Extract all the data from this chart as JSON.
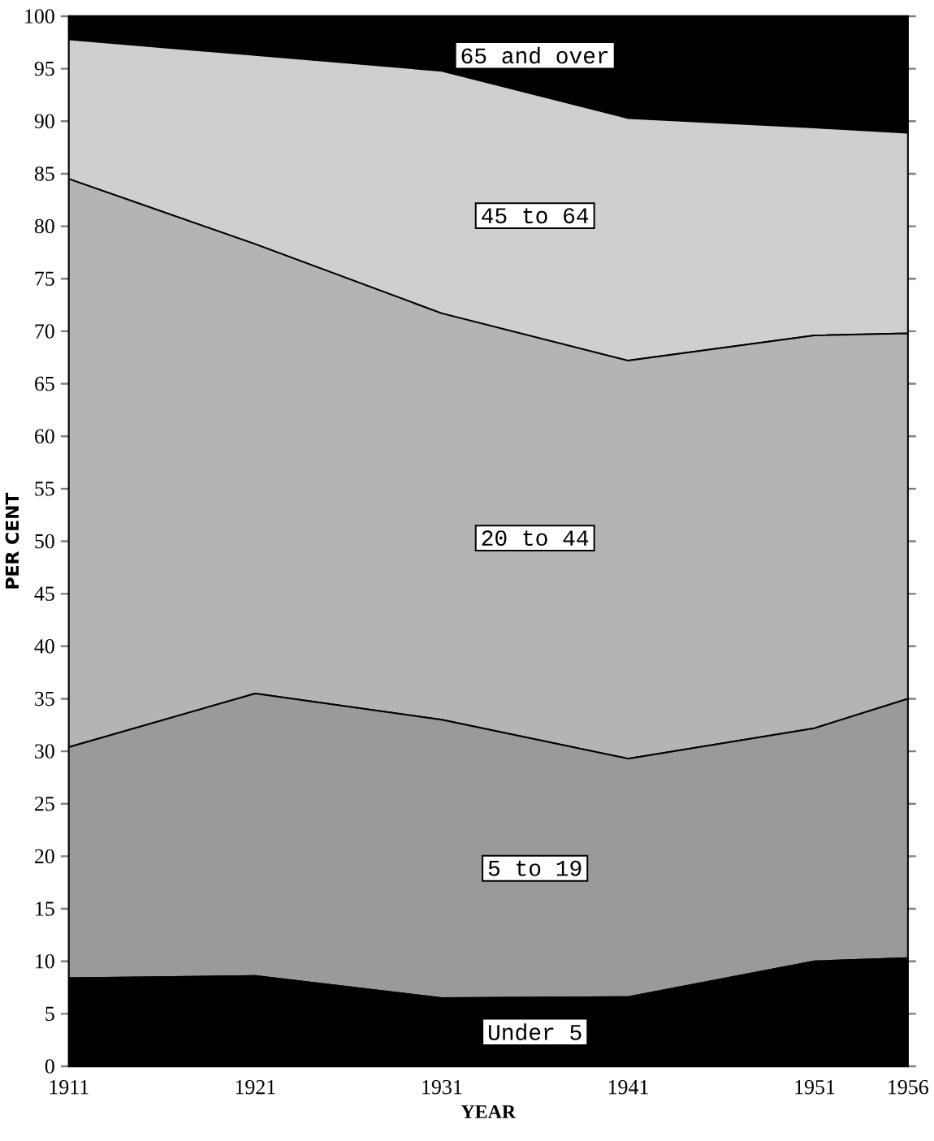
{
  "chart_data": {
    "type": "area",
    "stacked": true,
    "xlabel": "YEAR",
    "ylabel": "PER CENT",
    "x": [
      1911,
      1921,
      1931,
      1941,
      1951,
      1956
    ],
    "xlim": [
      1911,
      1956
    ],
    "xticks": [
      1911,
      1921,
      1931,
      1941,
      1951,
      1956
    ],
    "ylim": [
      0,
      100
    ],
    "yticks": [
      0,
      5,
      10,
      15,
      20,
      25,
      30,
      35,
      40,
      45,
      50,
      55,
      60,
      65,
      70,
      75,
      80,
      85,
      90,
      95,
      100
    ],
    "series": [
      {
        "name": "Under 5",
        "color": "#000000",
        "values": [
          8.4,
          8.6,
          6.5,
          6.6,
          10.0,
          10.3
        ]
      },
      {
        "name": "5 to 19",
        "color": "#9a9a9a",
        "values": [
          22.0,
          26.9,
          26.5,
          22.7,
          22.2,
          24.7
        ]
      },
      {
        "name": "20 to 44",
        "color": "#b4b4b4",
        "values": [
          54.1,
          42.8,
          38.7,
          37.9,
          37.4,
          34.8
        ]
      },
      {
        "name": "45 to 64",
        "color": "#cfcfcf",
        "values": [
          13.3,
          18.0,
          23.1,
          23.1,
          19.8,
          19.1
        ]
      },
      {
        "name": "65 and over",
        "color": "#000000",
        "values": [
          2.2,
          3.7,
          5.2,
          9.7,
          10.6,
          11.1
        ]
      }
    ]
  }
}
